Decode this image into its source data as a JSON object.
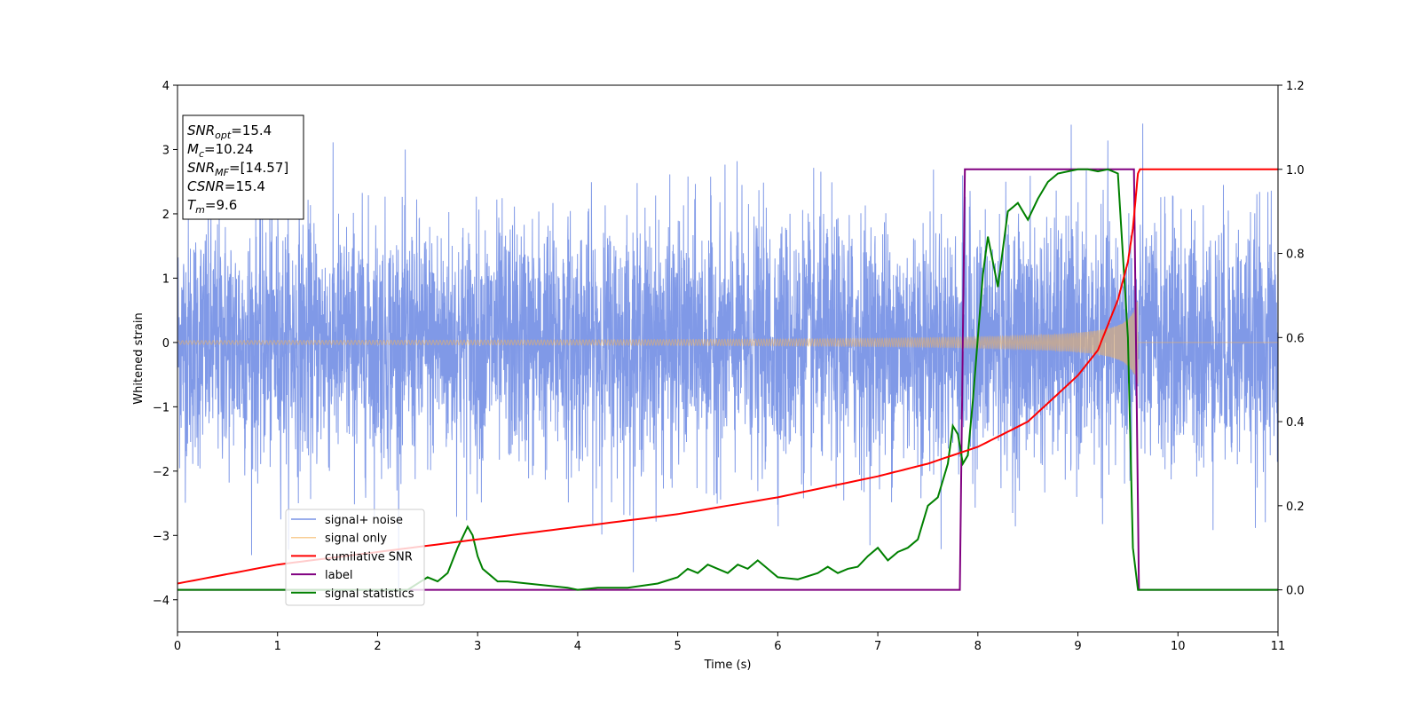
{
  "chart_data": {
    "type": "line",
    "title": "",
    "xlabel": "Time (s)",
    "ylabel": "Whitened strain",
    "xlim": [
      0,
      11
    ],
    "ylim": [
      -4.5,
      4
    ],
    "y2lim": [
      -0.1,
      1.2
    ],
    "x_ticks": [
      0,
      1,
      2,
      3,
      4,
      5,
      6,
      7,
      8,
      9,
      10,
      11
    ],
    "y_ticks": [
      -4,
      -3,
      -2,
      -1,
      0,
      1,
      2,
      3,
      4
    ],
    "y_tick_labels": [
      "−4",
      "−3",
      "−2",
      "−1",
      "0",
      "1",
      "2",
      "3",
      "4"
    ],
    "y2_ticks": [
      0.0,
      0.2,
      0.4,
      0.6,
      0.8,
      1.0,
      1.2
    ],
    "y2_tick_labels": [
      "0.0",
      "0.2",
      "0.4",
      "0.6",
      "0.8",
      "1.0",
      "1.2"
    ],
    "grid": false,
    "legend_position": "bottom-left",
    "annotation": {
      "lines": [
        {
          "main": "SNR",
          "sub": "opt",
          "value": "=15.4"
        },
        {
          "main": "M",
          "sub": "c",
          "value": "=10.24"
        },
        {
          "main": "SNR",
          "sub": "MF",
          "value": "=[14.57]"
        },
        {
          "main": "CSNR",
          "sub": "",
          "value": "=15.4"
        },
        {
          "main": "T",
          "sub": "m",
          "value": "=9.6"
        }
      ]
    },
    "series": [
      {
        "name": "signal+ noise",
        "axis": "left",
        "color": "#7994e6",
        "kind": "noise",
        "approx_std": 0.95,
        "approx_range": [
          -4.15,
          3.65
        ]
      },
      {
        "name": "signal only",
        "axis": "left",
        "color": "#f6c27a",
        "kind": "chirp",
        "start_amplitude": 0.03,
        "end_amplitude": 0.95,
        "merger_time": 9.6
      },
      {
        "name": "cumilative SNR",
        "axis": "right",
        "color": "#ff0000",
        "x": [
          0,
          1,
          2,
          3,
          4,
          5,
          6,
          7,
          7.5,
          8,
          8.5,
          9,
          9.2,
          9.4,
          9.5,
          9.55,
          9.6,
          9.62,
          11
        ],
        "values": [
          0.015,
          0.06,
          0.09,
          0.12,
          0.15,
          0.18,
          0.22,
          0.27,
          0.3,
          0.34,
          0.4,
          0.51,
          0.57,
          0.69,
          0.78,
          0.86,
          0.99,
          1.0,
          1.0
        ]
      },
      {
        "name": "label",
        "axis": "right",
        "color": "#800080",
        "x": [
          0,
          7.82,
          7.87,
          9.56,
          9.61,
          11
        ],
        "values": [
          0,
          0,
          1,
          1,
          0,
          0
        ]
      },
      {
        "name": "signal statistics",
        "axis": "right",
        "color": "#008000",
        "x": [
          0,
          0.5,
          1,
          1.5,
          2,
          2.3,
          2.5,
          2.6,
          2.7,
          2.8,
          2.9,
          2.95,
          3.0,
          3.05,
          3.1,
          3.2,
          3.3,
          3.5,
          3.7,
          3.9,
          4.0,
          4.2,
          4.5,
          4.8,
          5.0,
          5.1,
          5.2,
          5.3,
          5.4,
          5.5,
          5.6,
          5.7,
          5.8,
          5.9,
          6.0,
          6.2,
          6.4,
          6.5,
          6.6,
          6.7,
          6.8,
          6.9,
          7.0,
          7.1,
          7.2,
          7.3,
          7.4,
          7.5,
          7.6,
          7.7,
          7.75,
          7.8,
          7.85,
          7.9,
          7.95,
          8.0,
          8.05,
          8.1,
          8.2,
          8.3,
          8.4,
          8.5,
          8.6,
          8.7,
          8.8,
          8.9,
          9.0,
          9.1,
          9.2,
          9.3,
          9.4,
          9.5,
          9.55,
          9.6,
          9.65,
          10,
          11
        ],
        "values": [
          0.0,
          0.0,
          0.0,
          0.0,
          0.0,
          0.0,
          0.03,
          0.02,
          0.04,
          0.1,
          0.15,
          0.13,
          0.08,
          0.05,
          0.04,
          0.02,
          0.02,
          0.015,
          0.01,
          0.005,
          0.0,
          0.005,
          0.005,
          0.015,
          0.03,
          0.05,
          0.04,
          0.06,
          0.05,
          0.04,
          0.06,
          0.05,
          0.07,
          0.05,
          0.03,
          0.025,
          0.04,
          0.055,
          0.04,
          0.05,
          0.055,
          0.08,
          0.1,
          0.07,
          0.09,
          0.1,
          0.12,
          0.2,
          0.22,
          0.3,
          0.39,
          0.37,
          0.3,
          0.32,
          0.45,
          0.6,
          0.75,
          0.84,
          0.72,
          0.9,
          0.92,
          0.88,
          0.93,
          0.97,
          0.99,
          0.995,
          1.0,
          1.0,
          0.995,
          1.0,
          0.99,
          0.6,
          0.1,
          0.0,
          0.0,
          0.0,
          0.0
        ]
      }
    ]
  }
}
